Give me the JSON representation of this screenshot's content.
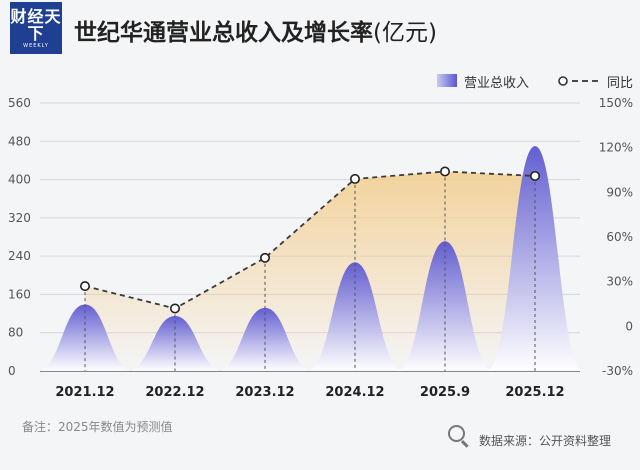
{
  "brand": {
    "logo_main": "财经天下",
    "logo_sub": "WEEKLY"
  },
  "title": {
    "main": "世纪华通营业总收入及增长率",
    "unit": "(亿元)"
  },
  "legend": {
    "bar_label": "营业总收入",
    "line_label": "同比"
  },
  "colors": {
    "bar_top": "#5b57d0",
    "bar_bottom": "#ffffff",
    "area_fill": "#f3cd8c",
    "line": "#3a3a3a",
    "marker_fill": "#ffffff",
    "grid": "#d3d6dc"
  },
  "chart_data": {
    "type": "bar",
    "categories": [
      "2021.12",
      "2022.12",
      "2023.12",
      "2024.12",
      "2025.9",
      "2025.12"
    ],
    "series": [
      {
        "name": "营业总收入",
        "type": "bar",
        "axis": "left",
        "values": [
          139,
          115,
          132,
          227,
          271,
          470
        ]
      },
      {
        "name": "同比",
        "type": "line",
        "axis": "right",
        "values": [
          27,
          12,
          46,
          99,
          104,
          101
        ]
      }
    ],
    "y_left": {
      "ylim": [
        0,
        560
      ],
      "ticks": [
        0,
        80,
        160,
        240,
        320,
        400,
        480,
        560
      ]
    },
    "y_right": {
      "ylim": [
        -30,
        150
      ],
      "ticks": [
        "-30%",
        "0",
        "30%",
        "60%",
        "90%",
        "120%",
        "150%"
      ]
    },
    "grid": true,
    "legend_position": "top-right"
  },
  "footnote": "备注：2025年数值为预测值",
  "source": {
    "text": "数据来源：公开资料整理",
    "icon": "magnifier-icon"
  }
}
